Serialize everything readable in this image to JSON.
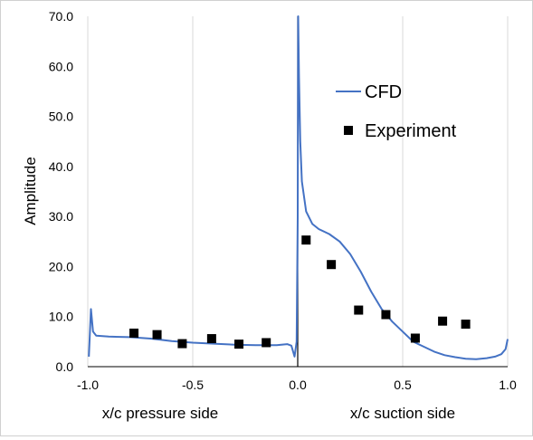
{
  "chart_data": {
    "type": "line+scatter",
    "ylabel": "Amplitude",
    "xlabel_left": "x/c pressure side",
    "xlabel_right": "x/c suction side",
    "xlim": [
      -1.0,
      1.0
    ],
    "ylim": [
      0.0,
      70.0
    ],
    "x_ticks": [
      "-1.0",
      "-0.5",
      "0.0",
      "0.5",
      "1.0"
    ],
    "x_tick_values": [
      -1.0,
      -0.5,
      0.0,
      0.5,
      1.0
    ],
    "y_ticks": [
      "0.0",
      "10.0",
      "20.0",
      "30.0",
      "40.0",
      "50.0",
      "60.0",
      "70.0"
    ],
    "y_tick_values": [
      0,
      10,
      20,
      30,
      40,
      50,
      60,
      70
    ],
    "grid": "vertical",
    "legend_position": "top-right",
    "colors": {
      "cfd": "#4472C4",
      "experiment": "#000000",
      "grid": "#d9d9d9",
      "axis": "#000000"
    },
    "series": [
      {
        "name": "CFD",
        "kind": "line",
        "points": [
          [
            -0.995,
            2.0
          ],
          [
            -0.985,
            11.5
          ],
          [
            -0.975,
            7.0
          ],
          [
            -0.96,
            6.2
          ],
          [
            -0.9,
            6.0
          ],
          [
            -0.8,
            5.9
          ],
          [
            -0.7,
            5.6
          ],
          [
            -0.6,
            5.1
          ],
          [
            -0.5,
            4.8
          ],
          [
            -0.4,
            4.6
          ],
          [
            -0.3,
            4.4
          ],
          [
            -0.2,
            4.3
          ],
          [
            -0.1,
            4.3
          ],
          [
            -0.05,
            4.5
          ],
          [
            -0.03,
            4.2
          ],
          [
            -0.015,
            2.0
          ],
          [
            -0.005,
            5.0
          ],
          [
            0.0,
            30.0
          ],
          [
            0.002,
            70.0
          ],
          [
            0.006,
            58.0
          ],
          [
            0.012,
            45.0
          ],
          [
            0.02,
            37.0
          ],
          [
            0.04,
            31.0
          ],
          [
            0.07,
            28.5
          ],
          [
            0.1,
            27.5
          ],
          [
            0.15,
            26.5
          ],
          [
            0.2,
            25.0
          ],
          [
            0.25,
            22.5
          ],
          [
            0.3,
            19.0
          ],
          [
            0.35,
            15.0
          ],
          [
            0.4,
            11.5
          ],
          [
            0.45,
            9.0
          ],
          [
            0.5,
            7.0
          ],
          [
            0.55,
            5.0
          ],
          [
            0.6,
            4.0
          ],
          [
            0.65,
            3.0
          ],
          [
            0.7,
            2.3
          ],
          [
            0.75,
            1.9
          ],
          [
            0.8,
            1.6
          ],
          [
            0.85,
            1.5
          ],
          [
            0.9,
            1.7
          ],
          [
            0.94,
            2.0
          ],
          [
            0.97,
            2.5
          ],
          [
            0.99,
            3.5
          ],
          [
            1.0,
            5.5
          ]
        ]
      },
      {
        "name": "Experiment",
        "kind": "scatter",
        "points": [
          [
            -0.78,
            6.7
          ],
          [
            -0.67,
            6.4
          ],
          [
            -0.55,
            4.6
          ],
          [
            -0.41,
            5.6
          ],
          [
            -0.28,
            4.5
          ],
          [
            -0.15,
            4.8
          ],
          [
            0.04,
            25.3
          ],
          [
            0.16,
            20.4
          ],
          [
            0.29,
            11.3
          ],
          [
            0.42,
            10.4
          ],
          [
            0.56,
            5.7
          ],
          [
            0.69,
            9.1
          ],
          [
            0.8,
            8.5
          ]
        ]
      }
    ]
  }
}
